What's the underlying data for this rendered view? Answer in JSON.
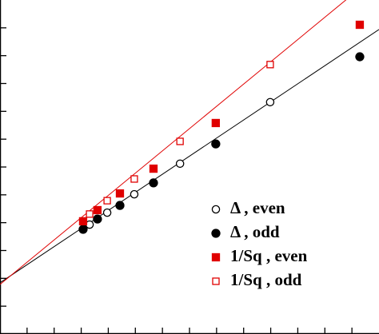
{
  "chart_data": {
    "type": "scatter",
    "xlim": [
      0,
      14
    ],
    "ylim": [
      0,
      12
    ],
    "xticks": [
      0,
      1,
      2,
      3,
      4,
      5,
      6,
      7,
      8,
      9,
      10,
      11,
      12,
      13
    ],
    "yticks": [
      1,
      2,
      3,
      4,
      5,
      6,
      7,
      8,
      9,
      10,
      11
    ],
    "series": [
      {
        "name": "Δ , even",
        "color": "#000000",
        "marker": "open-circle",
        "x": [
          3.31,
          3.96,
          4.96,
          6.65,
          9.98
        ],
        "values": [
          3.93,
          4.36,
          5.02,
          6.12,
          8.33
        ]
      },
      {
        "name": "Δ , odd",
        "color": "#000000",
        "marker": "filled-circle",
        "x": [
          3.07,
          3.6,
          4.43,
          5.67,
          7.97,
          13.29
        ],
        "values": [
          3.76,
          4.13,
          4.62,
          5.43,
          6.83,
          9.96
        ]
      },
      {
        "name": "1/Sq , even",
        "color": "#e00000",
        "marker": "filled-square",
        "x": [
          3.07,
          3.6,
          4.43,
          5.67,
          7.97,
          13.29
        ],
        "values": [
          4.05,
          4.45,
          5.05,
          5.94,
          7.58,
          11.11
        ]
      },
      {
        "name": "1/Sq , odd",
        "color": "#e00000",
        "marker": "open-square",
        "x": [
          3.31,
          3.96,
          4.96,
          6.65,
          9.98
        ],
        "values": [
          4.31,
          4.79,
          5.57,
          6.92,
          9.68
        ]
      }
    ],
    "fit_lines": [
      {
        "color": "#000000",
        "x": [
          0,
          14
        ],
        "values": [
          1.84,
          10.94
        ]
      },
      {
        "color": "#e00000",
        "x": [
          0,
          14
        ],
        "values": [
          1.78,
          12.98
        ]
      }
    ]
  }
}
